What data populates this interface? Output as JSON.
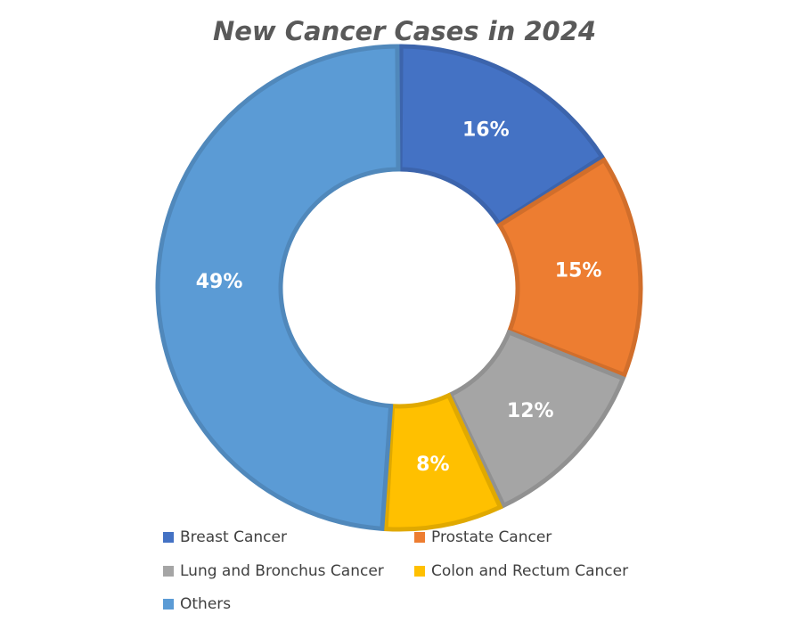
{
  "chart_data": {
    "type": "pie",
    "variant": "donut",
    "title": "New Cancer Cases in 2024",
    "slices": [
      {
        "name": "Breast Cancer",
        "value": 16,
        "label": "16%",
        "color": "#4472C4"
      },
      {
        "name": "Prostate Cancer",
        "value": 15,
        "label": "15%",
        "color": "#ED7D31"
      },
      {
        "name": "Lung and Bronchus Cancer",
        "value": 12,
        "label": "12%",
        "color": "#A5A5A5"
      },
      {
        "name": "Colon and Rectum Cancer",
        "value": 8,
        "label": "8%",
        "color": "#FFC000"
      },
      {
        "name": "Others",
        "value": 49,
        "label": "49%",
        "color": "#5B9BD5"
      }
    ],
    "legend_position": "bottom"
  }
}
